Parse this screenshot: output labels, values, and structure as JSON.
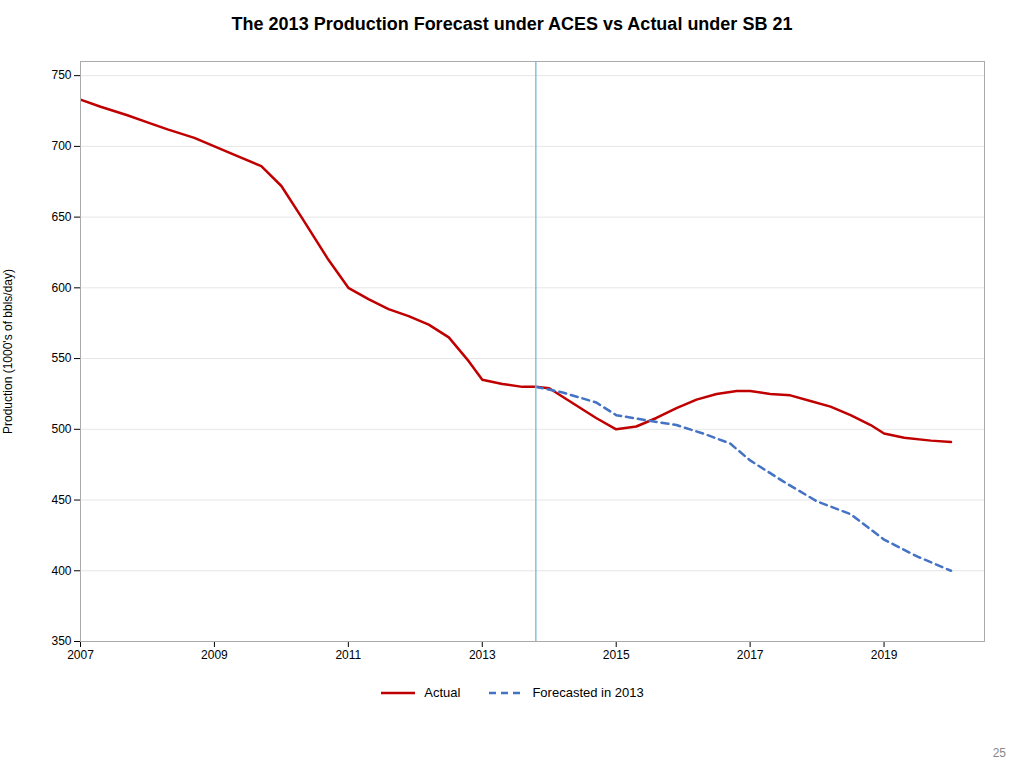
{
  "chart_data": {
    "type": "line",
    "title": "The 2013 Production Forecast under ACES vs Actual under SB 21",
    "y_label": "Production (1000's of bbls/day)",
    "xlim": [
      2007,
      2020.5
    ],
    "xticks": [
      2007,
      2009,
      2011,
      2013,
      2015,
      2017,
      2019
    ],
    "ylim": [
      350,
      760
    ],
    "yticks": [
      350,
      400,
      450,
      500,
      550,
      600,
      650,
      700,
      750
    ],
    "grid": "y",
    "legend": "bottom",
    "series": [
      {
        "name": "Actual",
        "color": "#c00000",
        "line_style": "solid",
        "x": [
          2007,
          2007.3,
          2007.7,
          2008,
          2008.3,
          2008.7,
          2009,
          2009.3,
          2009.7,
          2010,
          2010.3,
          2010.7,
          2011,
          2011.3,
          2011.6,
          2011.9,
          2012.2,
          2012.5,
          2012.8,
          2013.0,
          2013.3,
          2013.6,
          2013.8,
          2014.0,
          2014.3,
          2014.7,
          2015.0,
          2015.3,
          2015.6,
          2015.9,
          2016.2,
          2016.5,
          2016.8,
          2017.0,
          2017.3,
          2017.6,
          2017.9,
          2018.2,
          2018.5,
          2018.8,
          2019.0,
          2019.3,
          2019.7,
          2020.0
        ],
        "values": [
          733,
          728,
          722,
          717,
          712,
          706,
          700,
          694,
          686,
          672,
          650,
          620,
          600,
          592,
          585,
          580,
          574,
          565,
          548,
          535,
          532,
          530,
          530,
          529,
          520,
          508,
          500,
          502,
          508,
          515,
          521,
          525,
          527,
          527,
          525,
          524,
          520,
          516,
          510,
          503,
          497,
          494,
          492,
          491
        ]
      },
      {
        "name": "Forecasted in 2013",
        "color": "#4472c4",
        "line_style": "dashed",
        "x": [
          2013.8,
          2014.2,
          2014.7,
          2015.0,
          2015.5,
          2015.9,
          2016.3,
          2016.7,
          2017.0,
          2017.5,
          2018.0,
          2018.5,
          2019.0,
          2019.5,
          2020.0
        ],
        "values": [
          530,
          526,
          519,
          510,
          506,
          503,
          497,
          490,
          478,
          463,
          449,
          440,
          422,
          410,
          400
        ]
      }
    ],
    "reference_lines": [
      {
        "x": 2013.8,
        "color": "#7ab4d4"
      }
    ],
    "page_number": "25"
  }
}
